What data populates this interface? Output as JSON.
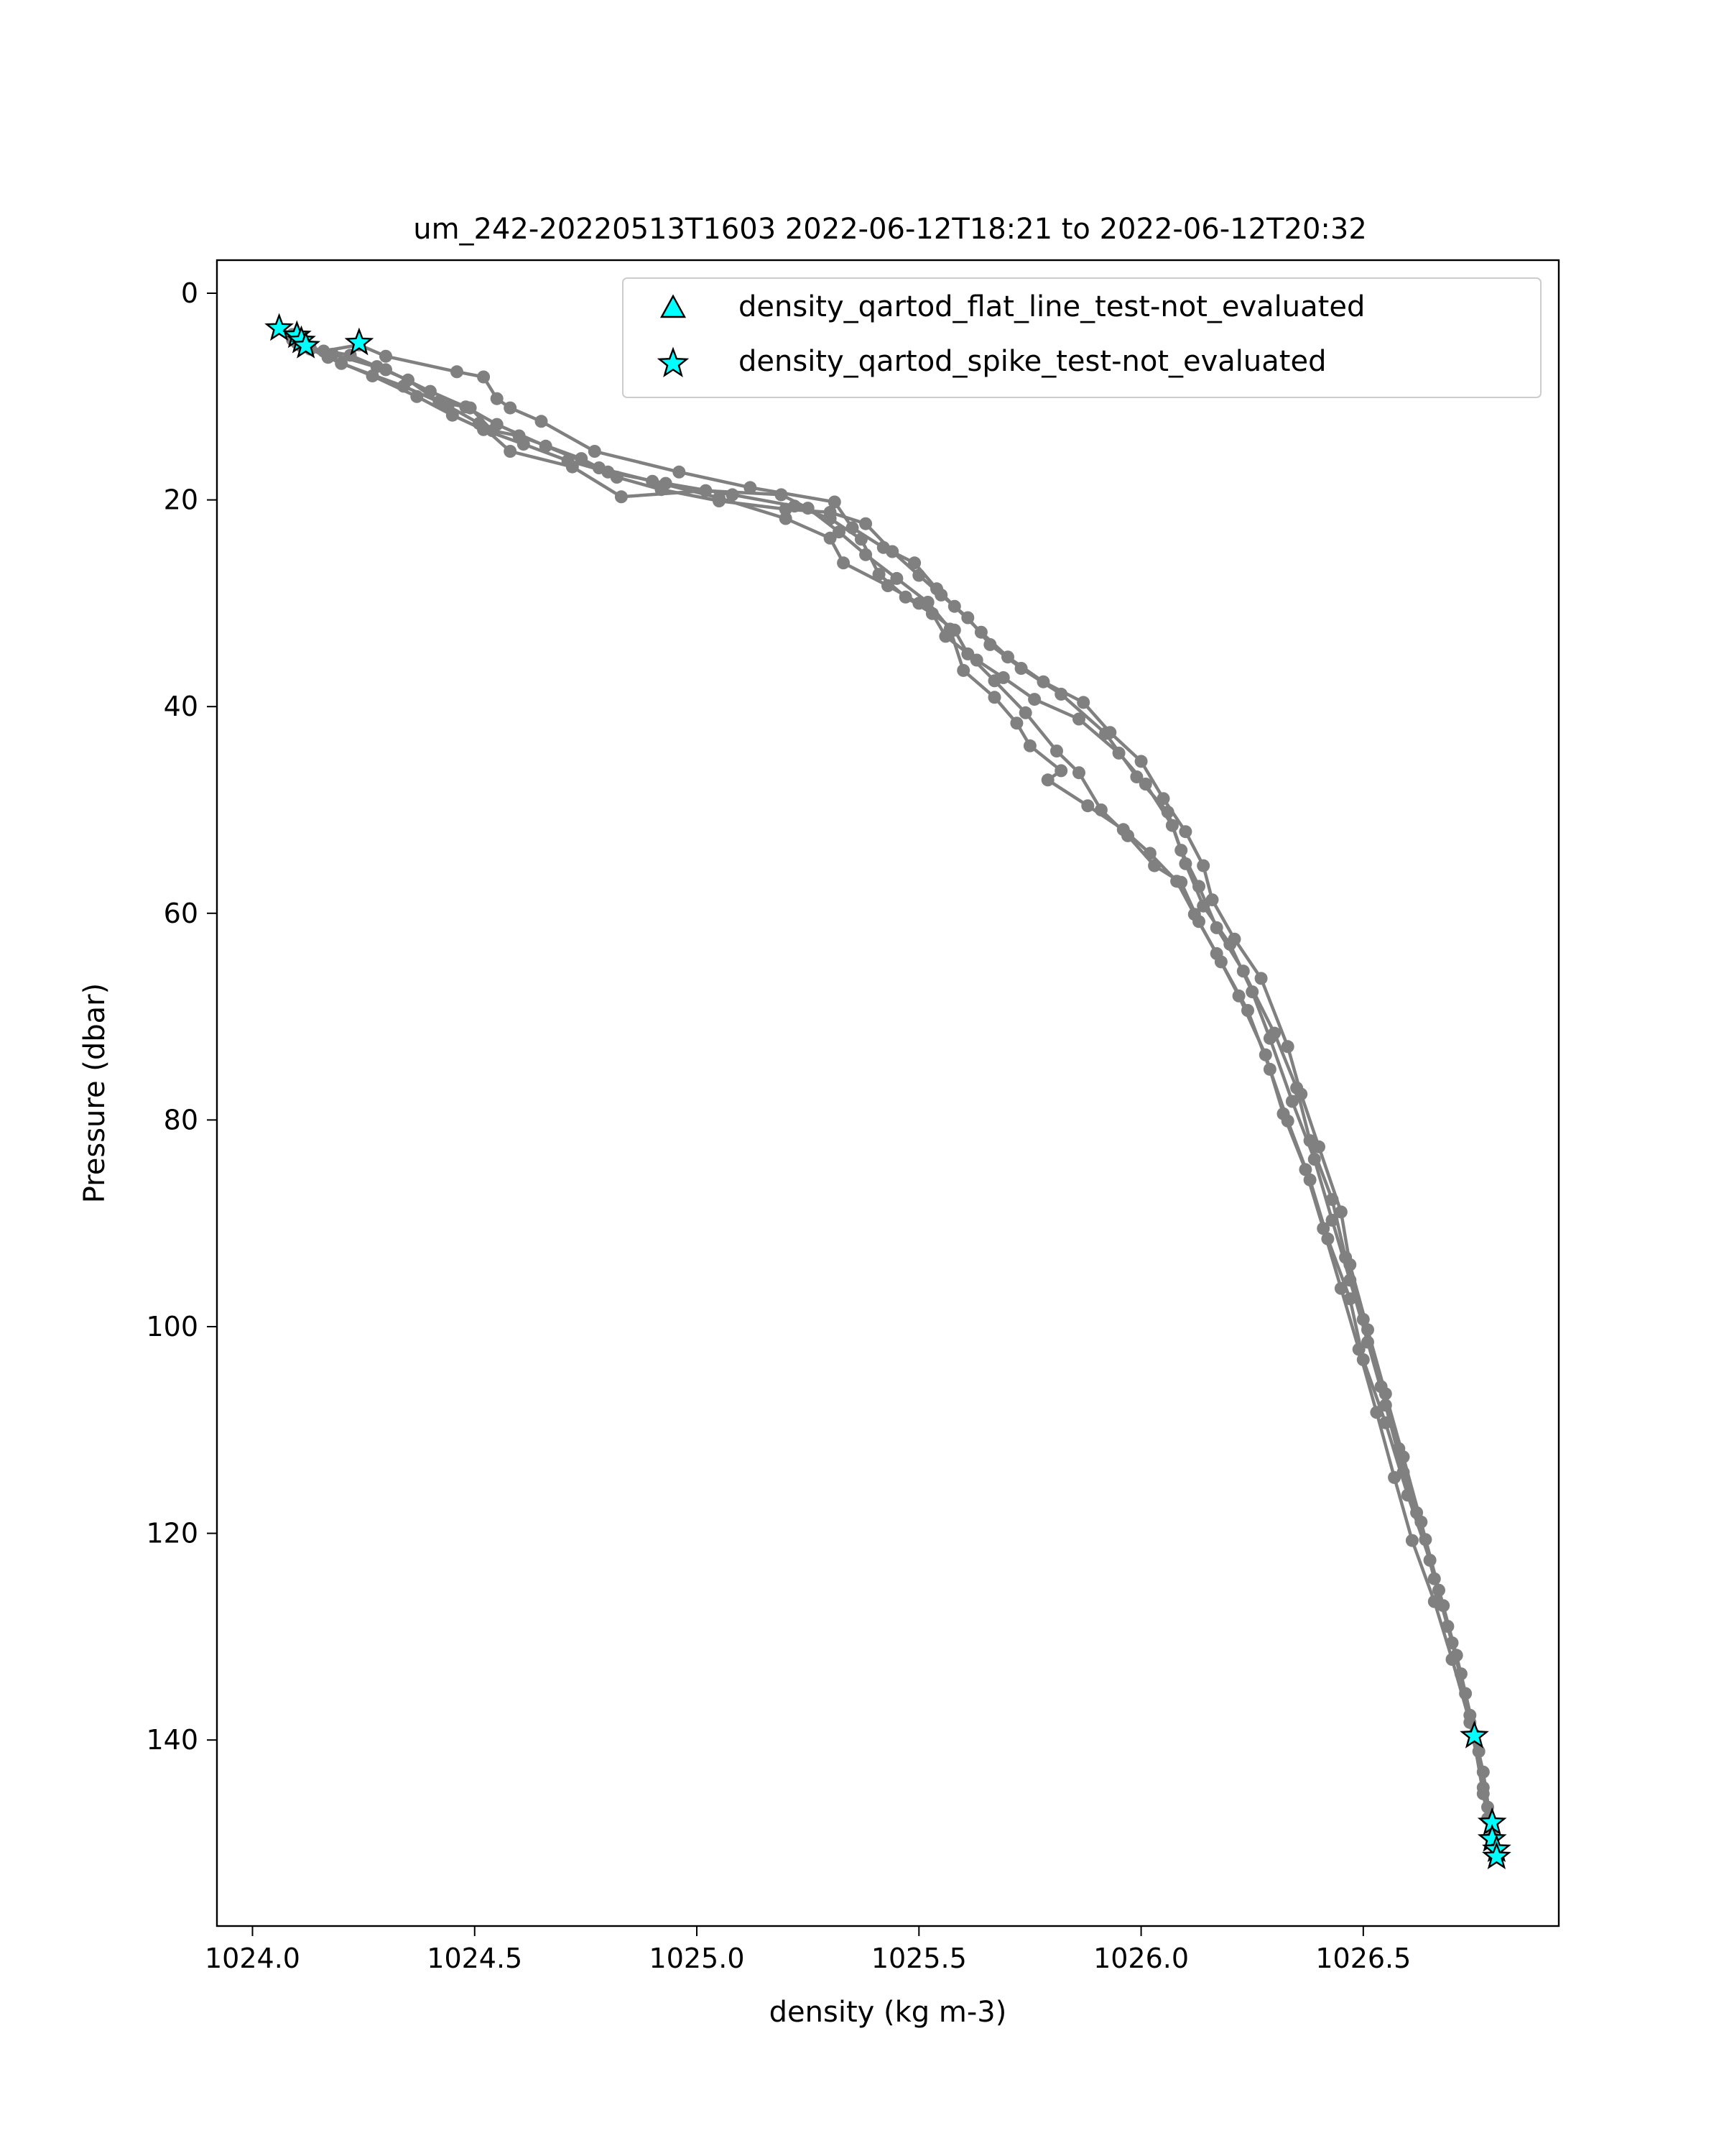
{
  "chart_data": {
    "type": "line",
    "title": "um_242-20220513T1603 2022-06-12T18:21 to 2022-06-12T20:32",
    "xlabel": "density (kg m-3)",
    "ylabel": "Pressure (dbar)",
    "xlim": [
      1023.92,
      1026.94
    ],
    "ylim": [
      158,
      -3.2
    ],
    "y_inverted": true,
    "xticks": [
      1024.0,
      1024.5,
      1025.0,
      1025.5,
      1026.0,
      1026.5
    ],
    "xtick_labels": [
      "1024.0",
      "1024.5",
      "1025.0",
      "1025.5",
      "1026.0",
      "1026.5"
    ],
    "yticks": [
      0,
      20,
      40,
      60,
      80,
      100,
      120,
      140
    ],
    "ytick_labels": [
      "0",
      "20",
      "40",
      "60",
      "80",
      "100",
      "120",
      "140"
    ],
    "grid": false,
    "legend_position": "top-right",
    "colors": {
      "profile": "#808080",
      "flag_fill": "#00ffff",
      "flag_edge": "#000000"
    },
    "series": [
      {
        "marker": "circle",
        "points": [
          [
            1024.06,
            3.4
          ],
          [
            1024.09,
            4.0
          ],
          [
            1024.11,
            5.1
          ],
          [
            1024.16,
            5.6
          ],
          [
            1024.24,
            5.0
          ],
          [
            1024.3,
            6.1
          ],
          [
            1024.46,
            7.6
          ],
          [
            1024.52,
            8.1
          ],
          [
            1024.55,
            10.2
          ],
          [
            1024.58,
            11.1
          ],
          [
            1024.65,
            12.4
          ],
          [
            1024.77,
            15.3
          ],
          [
            1024.96,
            17.3
          ],
          [
            1025.12,
            18.8
          ],
          [
            1025.31,
            20.2
          ],
          [
            1025.35,
            22.7
          ],
          [
            1025.42,
            24.6
          ],
          [
            1025.49,
            26.1
          ],
          [
            1025.54,
            28.6
          ],
          [
            1025.58,
            30.3
          ],
          [
            1025.64,
            32.8
          ],
          [
            1025.7,
            35.2
          ],
          [
            1025.78,
            37.6
          ],
          [
            1025.87,
            39.6
          ],
          [
            1025.93,
            42.5
          ],
          [
            1026.0,
            45.3
          ],
          [
            1026.05,
            48.9
          ],
          [
            1026.1,
            52.1
          ],
          [
            1026.14,
            55.4
          ],
          [
            1026.16,
            58.7
          ],
          [
            1026.21,
            62.5
          ],
          [
            1026.27,
            66.3
          ],
          [
            1026.33,
            72.9
          ],
          [
            1026.36,
            77.5
          ],
          [
            1026.4,
            82.6
          ],
          [
            1026.45,
            88.9
          ],
          [
            1026.47,
            94.0
          ],
          [
            1026.51,
            100.3
          ],
          [
            1026.55,
            106.5
          ],
          [
            1026.59,
            112.6
          ],
          [
            1026.63,
            118.9
          ],
          [
            1026.67,
            125.5
          ],
          [
            1026.71,
            131.8
          ],
          [
            1026.75,
            139.5
          ],
          [
            1026.78,
            146.5
          ],
          [
            1026.8,
            151.3
          ]
        ]
      },
      {
        "marker": "circle",
        "points": [
          [
            1024.09,
            4.5
          ],
          [
            1024.13,
            5.3
          ],
          [
            1024.22,
            6.0
          ],
          [
            1024.28,
            7.1
          ],
          [
            1024.35,
            8.4
          ],
          [
            1024.42,
            10.5
          ],
          [
            1024.49,
            11.1
          ],
          [
            1024.54,
            13.3
          ],
          [
            1024.6,
            13.8
          ],
          [
            1024.74,
            16.0
          ],
          [
            1024.82,
            17.8
          ],
          [
            1024.92,
            19.0
          ],
          [
            1025.05,
            20.1
          ],
          [
            1025.2,
            20.9
          ],
          [
            1025.3,
            21.2
          ],
          [
            1025.38,
            22.3
          ],
          [
            1025.44,
            25.0
          ],
          [
            1025.5,
            27.3
          ],
          [
            1025.55,
            29.2
          ],
          [
            1025.61,
            31.4
          ],
          [
            1025.66,
            34.0
          ],
          [
            1025.73,
            36.3
          ],
          [
            1025.82,
            38.8
          ],
          [
            1025.92,
            42.6
          ],
          [
            1025.99,
            46.8
          ],
          [
            1026.06,
            50.2
          ],
          [
            1026.09,
            53.9
          ],
          [
            1026.13,
            57.4
          ],
          [
            1026.17,
            61.4
          ],
          [
            1026.23,
            65.6
          ],
          [
            1026.3,
            71.6
          ],
          [
            1026.35,
            76.9
          ],
          [
            1026.38,
            82.0
          ],
          [
            1026.43,
            87.7
          ],
          [
            1026.46,
            93.3
          ],
          [
            1026.5,
            99.3
          ],
          [
            1026.54,
            105.8
          ],
          [
            1026.58,
            111.8
          ],
          [
            1026.62,
            118.0
          ],
          [
            1026.66,
            124.4
          ],
          [
            1026.7,
            130.6
          ],
          [
            1026.74,
            137.6
          ],
          [
            1026.77,
            145.2
          ],
          [
            1026.79,
            149.9
          ]
        ]
      },
      {
        "marker": "circle",
        "points": [
          [
            1024.12,
            5.0
          ],
          [
            1024.17,
            6.2
          ],
          [
            1024.27,
            8.0
          ],
          [
            1024.37,
            10.0
          ],
          [
            1024.45,
            11.8
          ],
          [
            1024.52,
            13.2
          ],
          [
            1024.61,
            14.6
          ],
          [
            1024.71,
            16.2
          ],
          [
            1024.8,
            17.3
          ],
          [
            1024.93,
            18.4
          ],
          [
            1025.08,
            19.5
          ],
          [
            1025.22,
            20.6
          ],
          [
            1025.3,
            21.8
          ],
          [
            1025.37,
            23.8
          ],
          [
            1025.41,
            27.2
          ],
          [
            1025.47,
            29.4
          ],
          [
            1025.53,
            31.0
          ],
          [
            1025.56,
            33.2
          ],
          [
            1025.63,
            35.5
          ],
          [
            1025.69,
            37.2
          ],
          [
            1025.76,
            39.3
          ],
          [
            1025.86,
            41.2
          ],
          [
            1025.95,
            44.5
          ],
          [
            1026.01,
            47.5
          ],
          [
            1026.07,
            51.5
          ],
          [
            1026.1,
            55.2
          ],
          [
            1026.14,
            59.3
          ],
          [
            1026.2,
            63.0
          ],
          [
            1026.25,
            67.6
          ],
          [
            1026.29,
            72.1
          ],
          [
            1026.34,
            78.2
          ],
          [
            1026.39,
            83.8
          ],
          [
            1026.43,
            89.7
          ],
          [
            1026.47,
            95.5
          ],
          [
            1026.51,
            101.5
          ],
          [
            1026.55,
            107.6
          ],
          [
            1026.59,
            114.1
          ],
          [
            1026.64,
            120.6
          ],
          [
            1026.68,
            127.0
          ],
          [
            1026.72,
            133.6
          ],
          [
            1026.76,
            141.1
          ],
          [
            1026.78,
            147.6
          ]
        ]
      },
      {
        "marker": "circle",
        "points": [
          [
            1024.1,
            4.8
          ],
          [
            1024.18,
            5.9
          ],
          [
            1024.3,
            7.4
          ],
          [
            1024.4,
            9.5
          ],
          [
            1024.48,
            11.0
          ],
          [
            1024.55,
            12.7
          ],
          [
            1024.66,
            14.8
          ],
          [
            1024.78,
            16.9
          ],
          [
            1024.9,
            18.2
          ],
          [
            1025.05,
            19.8
          ],
          [
            1025.2,
            21.8
          ],
          [
            1025.3,
            23.7
          ],
          [
            1025.33,
            26.1
          ],
          [
            1025.43,
            28.3
          ],
          [
            1025.5,
            30.0
          ],
          [
            1025.58,
            32.6
          ],
          [
            1025.61,
            34.9
          ],
          [
            1025.67,
            37.5
          ],
          [
            1025.74,
            40.6
          ],
          [
            1025.81,
            44.3
          ],
          [
            1025.86,
            46.4
          ],
          [
            1025.91,
            50.0
          ],
          [
            1025.97,
            52.5
          ],
          [
            1026.03,
            55.4
          ],
          [
            1026.09,
            57.0
          ],
          [
            1026.13,
            60.8
          ],
          [
            1026.18,
            64.7
          ],
          [
            1026.24,
            69.4
          ],
          [
            1026.29,
            75.1
          ],
          [
            1026.33,
            80.1
          ],
          [
            1026.38,
            85.8
          ],
          [
            1026.42,
            91.5
          ],
          [
            1026.47,
            97.3
          ],
          [
            1026.5,
            103.2
          ],
          [
            1026.55,
            109.3
          ],
          [
            1026.6,
            116.3
          ],
          [
            1026.65,
            122.6
          ],
          [
            1026.69,
            129.0
          ],
          [
            1026.73,
            135.5
          ],
          [
            1026.77,
            143.1
          ],
          [
            1026.79,
            148.8
          ]
        ]
      },
      {
        "marker": "circle",
        "points": [
          [
            1024.13,
            5.4
          ],
          [
            1024.2,
            6.8
          ],
          [
            1024.34,
            9.0
          ],
          [
            1024.44,
            10.9
          ],
          [
            1024.51,
            12.6
          ],
          [
            1024.58,
            15.3
          ],
          [
            1024.72,
            16.8
          ],
          [
            1024.83,
            19.7
          ],
          [
            1025.02,
            19.1
          ],
          [
            1025.19,
            19.5
          ],
          [
            1025.25,
            20.8
          ],
          [
            1025.32,
            23.1
          ],
          [
            1025.38,
            25.3
          ],
          [
            1025.45,
            27.6
          ],
          [
            1025.52,
            29.9
          ],
          [
            1025.57,
            32.5
          ],
          [
            1025.6,
            36.5
          ],
          [
            1025.67,
            39.1
          ],
          [
            1025.72,
            41.6
          ],
          [
            1025.75,
            43.8
          ],
          [
            1025.82,
            46.2
          ],
          [
            1025.79,
            47.1
          ],
          [
            1025.88,
            49.6
          ],
          [
            1025.96,
            51.9
          ],
          [
            1026.02,
            54.2
          ],
          [
            1026.08,
            56.9
          ],
          [
            1026.12,
            60.1
          ],
          [
            1026.17,
            63.9
          ],
          [
            1026.22,
            68.0
          ],
          [
            1026.28,
            73.7
          ],
          [
            1026.32,
            79.4
          ],
          [
            1026.37,
            84.8
          ],
          [
            1026.41,
            90.5
          ],
          [
            1026.45,
            96.3
          ],
          [
            1026.49,
            102.2
          ],
          [
            1026.53,
            108.3
          ],
          [
            1026.57,
            114.6
          ],
          [
            1026.61,
            120.7
          ],
          [
            1026.66,
            126.6
          ],
          [
            1026.7,
            132.2
          ],
          [
            1026.74,
            138.3
          ],
          [
            1026.77,
            144.6
          ],
          [
            1026.8,
            150.6
          ]
        ]
      }
    ],
    "flags": [
      {
        "name": "density_qartod_flat_line_test-not_evaluated",
        "marker": "triangle",
        "points": []
      },
      {
        "name": "density_qartod_spike_test-not_evaluated",
        "marker": "star",
        "points": [
          [
            1024.06,
            3.4
          ],
          [
            1024.1,
            4.1
          ],
          [
            1024.11,
            4.6
          ],
          [
            1024.12,
            5.1
          ],
          [
            1024.24,
            4.8
          ],
          [
            1026.75,
            139.6
          ],
          [
            1026.79,
            148.0
          ],
          [
            1026.79,
            149.6
          ],
          [
            1026.8,
            150.6
          ],
          [
            1026.8,
            151.3
          ]
        ]
      }
    ]
  }
}
